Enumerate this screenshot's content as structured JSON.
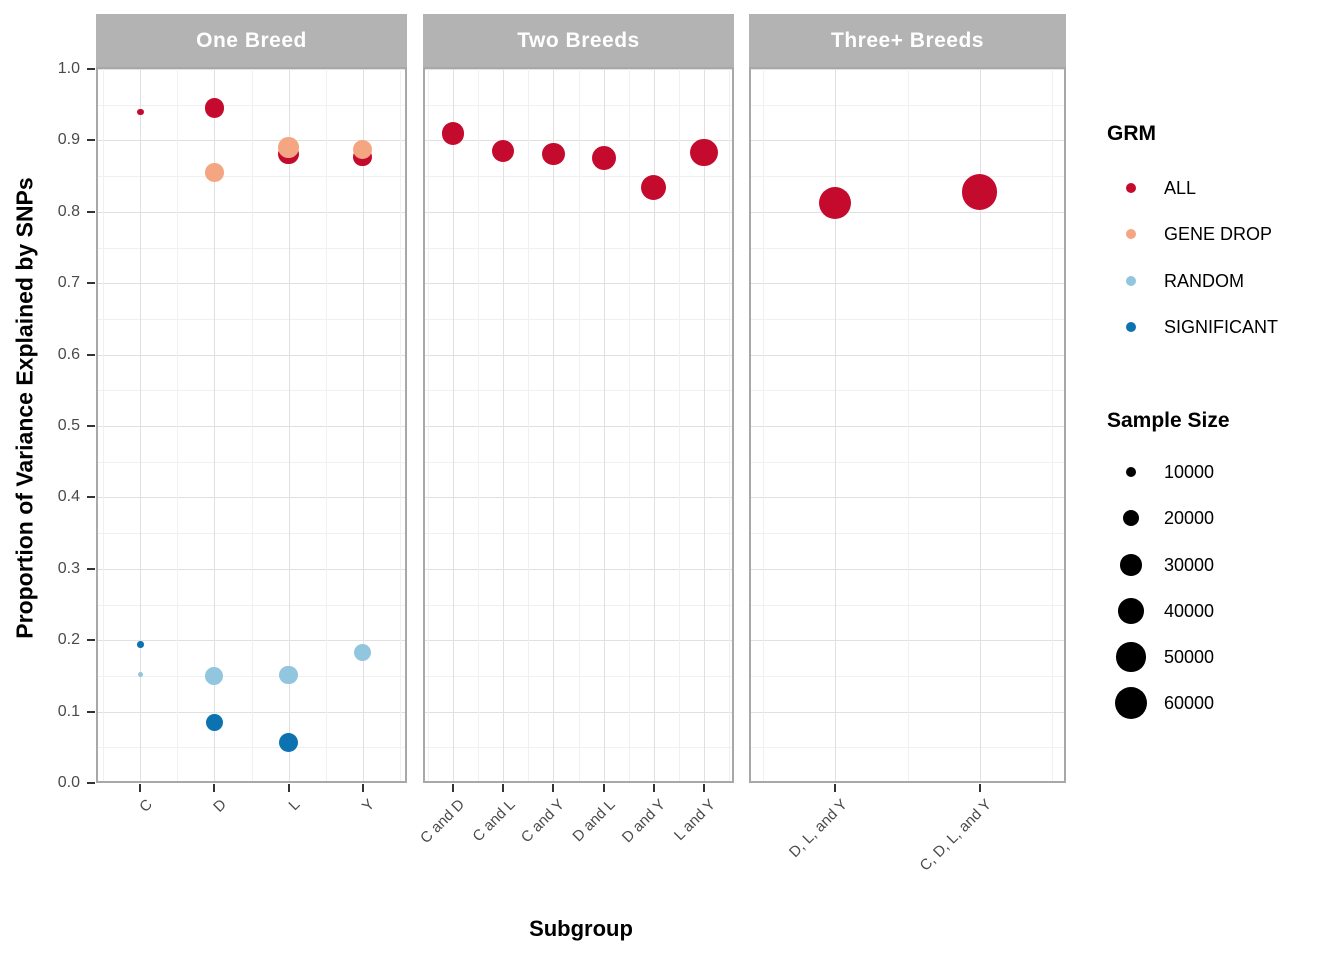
{
  "chart_data": {
    "type": "scatter",
    "title": "",
    "xlabel": "Subgroup",
    "ylabel": "Proportion of Variance Explained by SNPs",
    "ylim": [
      0.0,
      1.0
    ],
    "yticks": [
      0.0,
      0.1,
      0.2,
      0.3,
      0.4,
      0.5,
      0.6,
      0.7,
      0.8,
      0.9,
      1.0
    ],
    "grid": "major and minor, light gray on white",
    "legend_position": "right",
    "color_by": "GRM",
    "size_by": "Sample Size",
    "grm_colors": {
      "ALL": "#c40b2e",
      "GENE DROP": "#f4a582",
      "RANDOM": "#92c5de",
      "SIGNIFICANT": "#0d72b0"
    },
    "grm_legend": {
      "title": "GRM",
      "items": [
        {
          "label": "ALL",
          "color": "#c40b2e"
        },
        {
          "label": "GENE DROP",
          "color": "#f4a582"
        },
        {
          "label": "RANDOM",
          "color": "#92c5de"
        },
        {
          "label": "SIGNIFICANT",
          "color": "#0d72b0"
        }
      ]
    },
    "size_legend": {
      "title": "Sample Size",
      "values": [
        10000,
        20000,
        30000,
        40000,
        50000,
        60000
      ]
    },
    "facets": [
      {
        "label": "One Breed",
        "categories": [
          "C",
          "D",
          "L",
          "Y"
        ],
        "points": [
          {
            "x": "C",
            "grm": "ALL",
            "y": 0.94,
            "n": 6000
          },
          {
            "x": "C",
            "grm": "SIGNIFICANT",
            "y": 0.194,
            "n": 6000
          },
          {
            "x": "C",
            "grm": "RANDOM",
            "y": 0.152,
            "n": 5000
          },
          {
            "x": "D",
            "grm": "ALL",
            "y": 0.945,
            "n": 26000
          },
          {
            "x": "D",
            "grm": "GENE DROP",
            "y": 0.855,
            "n": 24000
          },
          {
            "x": "D",
            "grm": "RANDOM",
            "y": 0.15,
            "n": 23000
          },
          {
            "x": "D",
            "grm": "SIGNIFICANT",
            "y": 0.085,
            "n": 22000
          },
          {
            "x": "L",
            "grm": "ALL",
            "y": 0.881,
            "n": 28000
          },
          {
            "x": "L",
            "grm": "GENE DROP",
            "y": 0.89,
            "n": 28000
          },
          {
            "x": "L",
            "grm": "RANDOM",
            "y": 0.151,
            "n": 23000
          },
          {
            "x": "L",
            "grm": "SIGNIFICANT",
            "y": 0.057,
            "n": 26000
          },
          {
            "x": "Y",
            "grm": "ALL",
            "y": 0.877,
            "n": 24000
          },
          {
            "x": "Y",
            "grm": "GENE DROP",
            "y": 0.887,
            "n": 25000
          },
          {
            "x": "Y",
            "grm": "RANDOM",
            "y": 0.183,
            "n": 22000
          }
        ]
      },
      {
        "label": "Two Breeds",
        "categories": [
          "C and D",
          "C and L",
          "C and Y",
          "D and L",
          "D and Y",
          "L and Y"
        ],
        "points": [
          {
            "x": "C and D",
            "grm": "ALL",
            "y": 0.91,
            "n": 33000
          },
          {
            "x": "C and L",
            "grm": "ALL",
            "y": 0.885,
            "n": 32000
          },
          {
            "x": "C and Y",
            "grm": "ALL",
            "y": 0.881,
            "n": 32000
          },
          {
            "x": "D and L",
            "grm": "ALL",
            "y": 0.876,
            "n": 36000
          },
          {
            "x": "D and Y",
            "grm": "ALL",
            "y": 0.834,
            "n": 39000
          },
          {
            "x": "L and Y",
            "grm": "ALL",
            "y": 0.883,
            "n": 46000
          }
        ]
      },
      {
        "label": "Three+ Breeds",
        "categories": [
          "D, L, and Y",
          "C, D, L, and Y"
        ],
        "points": [
          {
            "x": "D, L, and Y",
            "grm": "ALL",
            "y": 0.812,
            "n": 58000
          },
          {
            "x": "C, D, L, and Y",
            "grm": "ALL",
            "y": 0.828,
            "n": 70000
          }
        ]
      }
    ],
    "style": {
      "strip_bg": "#b3b3b3",
      "strip_text": "#ffffff",
      "grid_major": "#e0e0e0",
      "grid_minor": "#f0f0f0",
      "panel_border": "#a8a8a8",
      "tick_color": "#333333",
      "tick_label_color": "#4a4a4a"
    }
  }
}
